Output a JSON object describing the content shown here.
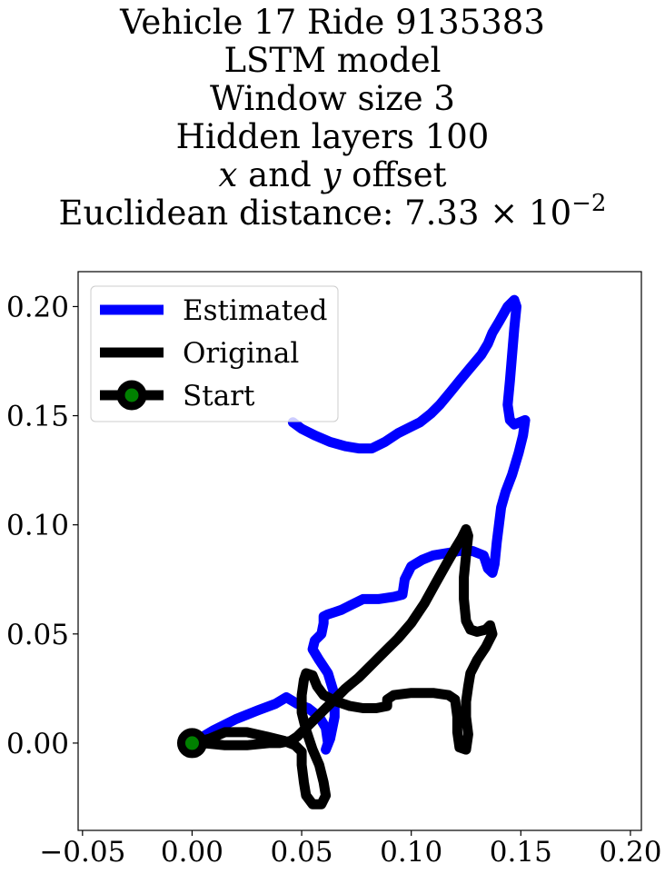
{
  "title": {
    "line1": "Vehicle 17 Ride 9135383",
    "line2": "LSTM model",
    "line3": "Window size 3",
    "line4": "Hidden layers 100",
    "line5_x": "x",
    "line5_and": " and ",
    "line5_y": "y",
    "line5_rest": " offset",
    "line6_prefix": "Euclidean distance: 7.33 × 10",
    "line6_exp": "−2"
  },
  "chart_data": {
    "type": "line",
    "xlim": [
      -0.052,
      0.205
    ],
    "ylim": [
      -0.04,
      0.216
    ],
    "xticks": [
      -0.05,
      0.0,
      0.05,
      0.1,
      0.15,
      0.2
    ],
    "xtick_labels": [
      "−0.05",
      "0.00",
      "0.05",
      "0.10",
      "0.15",
      "0.20"
    ],
    "yticks": [
      0.0,
      0.05,
      0.1,
      0.15,
      0.2
    ],
    "ytick_labels": [
      "0.00",
      "0.05",
      "0.10",
      "0.15",
      "0.20"
    ],
    "grid": false,
    "legend_position": "upper left",
    "series": [
      {
        "name": "Estimated",
        "color": "#0000ff",
        "points": [
          [
            0.0,
            0.0
          ],
          [
            0.01,
            0.006
          ],
          [
            0.02,
            0.011
          ],
          [
            0.03,
            0.015
          ],
          [
            0.038,
            0.018
          ],
          [
            0.043,
            0.021
          ],
          [
            0.048,
            0.018
          ],
          [
            0.053,
            0.016
          ],
          [
            0.058,
            0.012
          ],
          [
            0.061,
            0.007
          ],
          [
            0.062,
            0.0
          ],
          [
            0.061,
            -0.003
          ],
          [
            0.063,
            0.002
          ],
          [
            0.065,
            0.012
          ],
          [
            0.065,
            0.022
          ],
          [
            0.062,
            0.032
          ],
          [
            0.058,
            0.038
          ],
          [
            0.055,
            0.043
          ],
          [
            0.056,
            0.047
          ],
          [
            0.059,
            0.05
          ],
          [
            0.06,
            0.055
          ],
          [
            0.06,
            0.058
          ],
          [
            0.062,
            0.059
          ],
          [
            0.065,
            0.06
          ],
          [
            0.068,
            0.061
          ],
          [
            0.072,
            0.063
          ],
          [
            0.078,
            0.066
          ],
          [
            0.085,
            0.066
          ],
          [
            0.092,
            0.067
          ],
          [
            0.096,
            0.068
          ],
          [
            0.097,
            0.075
          ],
          [
            0.1,
            0.081
          ],
          [
            0.105,
            0.084
          ],
          [
            0.11,
            0.086
          ],
          [
            0.116,
            0.087
          ],
          [
            0.122,
            0.088
          ],
          [
            0.128,
            0.088
          ],
          [
            0.133,
            0.086
          ],
          [
            0.135,
            0.08
          ],
          [
            0.137,
            0.078
          ],
          [
            0.138,
            0.082
          ],
          [
            0.139,
            0.092
          ],
          [
            0.14,
            0.1
          ],
          [
            0.141,
            0.108
          ],
          [
            0.143,
            0.115
          ],
          [
            0.146,
            0.123
          ],
          [
            0.149,
            0.133
          ],
          [
            0.151,
            0.141
          ],
          [
            0.152,
            0.148
          ],
          [
            0.147,
            0.146
          ],
          [
            0.145,
            0.148
          ],
          [
            0.144,
            0.155
          ],
          [
            0.145,
            0.166
          ],
          [
            0.146,
            0.178
          ],
          [
            0.147,
            0.19
          ],
          [
            0.148,
            0.2
          ],
          [
            0.147,
            0.203
          ],
          [
            0.144,
            0.2
          ],
          [
            0.14,
            0.193
          ],
          [
            0.137,
            0.188
          ],
          [
            0.135,
            0.183
          ],
          [
            0.132,
            0.178
          ],
          [
            0.127,
            0.172
          ],
          [
            0.122,
            0.166
          ],
          [
            0.118,
            0.161
          ],
          [
            0.113,
            0.155
          ],
          [
            0.109,
            0.151
          ],
          [
            0.104,
            0.147
          ],
          [
            0.1,
            0.145
          ],
          [
            0.094,
            0.142
          ],
          [
            0.088,
            0.138
          ],
          [
            0.082,
            0.135
          ],
          [
            0.076,
            0.135
          ],
          [
            0.07,
            0.136
          ],
          [
            0.063,
            0.138
          ],
          [
            0.056,
            0.141
          ],
          [
            0.05,
            0.144
          ],
          [
            0.046,
            0.147
          ]
        ]
      },
      {
        "name": "Original",
        "color": "#000000",
        "points": [
          [
            0.0,
            0.0
          ],
          [
            0.005,
            0.0
          ],
          [
            0.015,
            -0.001
          ],
          [
            0.025,
            -0.001
          ],
          [
            0.035,
            0.0
          ],
          [
            0.04,
            0.0
          ],
          [
            0.045,
            0.001
          ],
          [
            0.048,
            0.003
          ],
          [
            0.052,
            0.007
          ],
          [
            0.056,
            0.011
          ],
          [
            0.06,
            0.015
          ],
          [
            0.065,
            0.02
          ],
          [
            0.07,
            0.025
          ],
          [
            0.076,
            0.03
          ],
          [
            0.082,
            0.036
          ],
          [
            0.088,
            0.042
          ],
          [
            0.094,
            0.048
          ],
          [
            0.1,
            0.055
          ],
          [
            0.106,
            0.064
          ],
          [
            0.111,
            0.073
          ],
          [
            0.116,
            0.082
          ],
          [
            0.12,
            0.089
          ],
          [
            0.123,
            0.094
          ],
          [
            0.125,
            0.098
          ],
          [
            0.126,
            0.095
          ],
          [
            0.125,
            0.086
          ],
          [
            0.124,
            0.076
          ],
          [
            0.124,
            0.066
          ],
          [
            0.125,
            0.056
          ],
          [
            0.127,
            0.052
          ],
          [
            0.13,
            0.051
          ],
          [
            0.134,
            0.052
          ],
          [
            0.136,
            0.054
          ],
          [
            0.137,
            0.05
          ],
          [
            0.134,
            0.044
          ],
          [
            0.13,
            0.038
          ],
          [
            0.127,
            0.032
          ],
          [
            0.126,
            0.026
          ],
          [
            0.125,
            0.019
          ],
          [
            0.125,
            0.012
          ],
          [
            0.126,
            0.004
          ],
          [
            0.125,
            -0.003
          ],
          [
            0.122,
            -0.002
          ],
          [
            0.121,
            0.005
          ],
          [
            0.121,
            0.012
          ],
          [
            0.12,
            0.02
          ],
          [
            0.117,
            0.022
          ],
          [
            0.11,
            0.023
          ],
          [
            0.1,
            0.023
          ],
          [
            0.092,
            0.022
          ],
          [
            0.089,
            0.02
          ],
          [
            0.089,
            0.017
          ],
          [
            0.084,
            0.016
          ],
          [
            0.078,
            0.016
          ],
          [
            0.072,
            0.017
          ],
          [
            0.066,
            0.019
          ],
          [
            0.06,
            0.022
          ],
          [
            0.057,
            0.026
          ],
          [
            0.055,
            0.031
          ],
          [
            0.052,
            0.032
          ],
          [
            0.051,
            0.029
          ],
          [
            0.05,
            0.022
          ],
          [
            0.05,
            0.014
          ],
          [
            0.052,
            0.006
          ],
          [
            0.055,
            -0.003
          ],
          [
            0.058,
            -0.01
          ],
          [
            0.06,
            -0.018
          ],
          [
            0.061,
            -0.024
          ],
          [
            0.059,
            -0.028
          ],
          [
            0.055,
            -0.028
          ],
          [
            0.052,
            -0.024
          ],
          [
            0.051,
            -0.018
          ],
          [
            0.05,
            -0.01
          ],
          [
            0.05,
            -0.004
          ],
          [
            0.047,
            -0.001
          ],
          [
            0.042,
            0.001
          ],
          [
            0.034,
            0.003
          ],
          [
            0.025,
            0.005
          ],
          [
            0.015,
            0.005
          ],
          [
            0.008,
            0.002
          ],
          [
            0.0,
            0.0
          ]
        ]
      }
    ],
    "start": {
      "name": "Start",
      "x": 0.0,
      "y": 0.0,
      "fill": "#008000",
      "edge": "#000000"
    }
  }
}
